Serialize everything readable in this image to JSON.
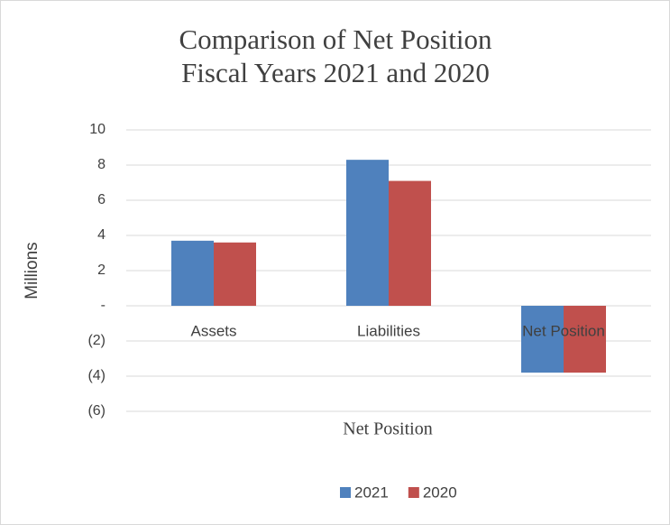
{
  "chart_data": {
    "type": "bar",
    "title_lines": [
      "Comparison of Net Position",
      "Fiscal Years 2021 and 2020"
    ],
    "x_label": "Net Position",
    "y_label": "Millions",
    "categories": [
      "Assets",
      "Liabilities",
      "Net Position"
    ],
    "series": [
      {
        "name": "2021",
        "color": "#4f81bd",
        "values": [
          3.7,
          8.3,
          -3.8
        ]
      },
      {
        "name": "2020",
        "color": "#c0504d",
        "values": [
          3.6,
          7.1,
          -3.8
        ]
      }
    ],
    "ylim": [
      -6,
      10
    ],
    "yticks": [
      {
        "value": -6,
        "label": "(6)"
      },
      {
        "value": -4,
        "label": "(4)"
      },
      {
        "value": -2,
        "label": "(2)"
      },
      {
        "value": 0,
        "label": "-"
      },
      2,
      4,
      6,
      8,
      10
    ],
    "grid": true,
    "legend": "bottom"
  }
}
